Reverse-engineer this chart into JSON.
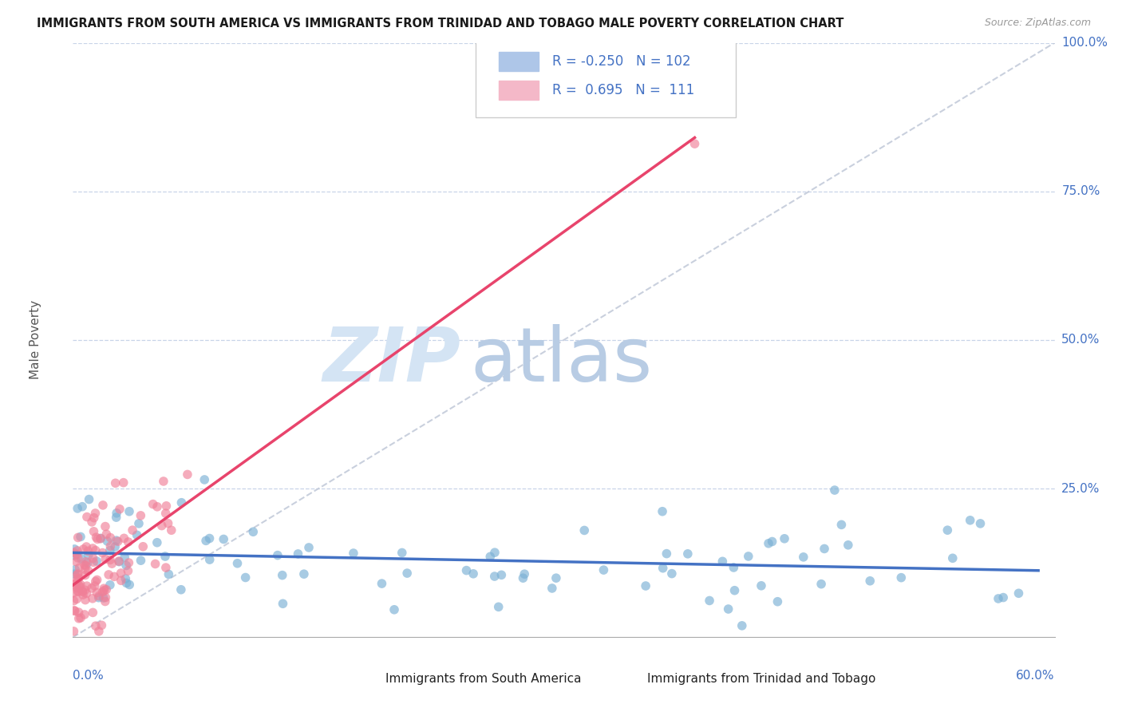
{
  "title": "IMMIGRANTS FROM SOUTH AMERICA VS IMMIGRANTS FROM TRINIDAD AND TOBAGO MALE POVERTY CORRELATION CHART",
  "source": "Source: ZipAtlas.com",
  "ylabel": "Male Poverty",
  "series1_name": "Immigrants from South America",
  "series2_name": "Immigrants from Trinidad and Tobago",
  "series1_R": -0.25,
  "series1_N": 102,
  "series2_R": 0.695,
  "series2_N": 111,
  "series1_legend_color": "#aec6e8",
  "series1_dot_color": "#7ab0d4",
  "series2_legend_color": "#f4b8c8",
  "series2_dot_color": "#f08098",
  "trend1_color": "#4472c4",
  "trend2_color": "#e8446c",
  "ref_line_color": "#c0c8d8",
  "background_color": "#ffffff",
  "grid_color": "#c8d4e8",
  "watermark_color": "#d4e4f4",
  "xlim": [
    0.0,
    0.6
  ],
  "ylim": [
    0.0,
    1.0
  ]
}
